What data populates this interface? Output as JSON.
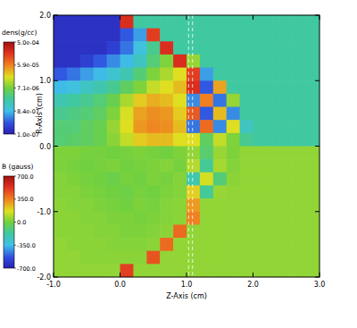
{
  "chart_data": {
    "type": "heatmap",
    "xlabel": "Z-Axis (cm)",
    "ylabel": "R-Axis (cm)",
    "xlim": [
      -1,
      3
    ],
    "ylim": [
      -2,
      2
    ],
    "xticks": [
      {
        "value": -1,
        "label": "-1.0"
      },
      {
        "value": 0,
        "label": "0.0"
      },
      {
        "value": 1,
        "label": "1.0"
      },
      {
        "value": 2,
        "label": "2.0"
      },
      {
        "value": 3,
        "label": "3.0"
      }
    ],
    "yticks": [
      {
        "value": -2,
        "label": "-2.0"
      },
      {
        "value": -1,
        "label": "-1.0"
      },
      {
        "value": 0,
        "label": "0.0"
      },
      {
        "value": 1,
        "label": "1.0"
      },
      {
        "value": 2,
        "label": "2.0"
      }
    ],
    "vlines": [
      1.03,
      1.09
    ],
    "fields": [
      {
        "label": "dens(g/cc)",
        "log": true,
        "range": [
          1e-07,
          0.0005
        ],
        "ticks": [
          {
            "value": 0.0005,
            "label": "5.0e-04"
          },
          {
            "value": 5.9e-05,
            "label": "5.9e-05"
          },
          {
            "value": 7.1e-06,
            "label": "7.1e-06"
          },
          {
            "value": 8.4e-07,
            "label": "8.4e-07"
          },
          {
            "value": 1e-07,
            "label": "1.0e-07"
          }
        ],
        "ylim": [
          0,
          2
        ],
        "cells": [
          [
            1.5e-07,
            1.5e-07,
            1.5e-07,
            1.5e-07,
            1.5e-07,
            0.0002,
            2.5e-06,
            2.5e-06,
            2.5e-06,
            2.5e-06,
            2.5e-06,
            2.5e-06,
            2.5e-06,
            2.5e-06,
            2.5e-06,
            2.5e-06,
            2.5e-06,
            2.5e-06,
            2.5e-06,
            2.5e-06
          ],
          [
            1.5e-07,
            1.5e-07,
            1.5e-07,
            1.5e-07,
            1.5e-07,
            3e-07,
            6e-07,
            0.00015,
            2.5e-06,
            2.5e-06,
            2.5e-06,
            2.5e-06,
            2.5e-06,
            2.5e-06,
            2.5e-06,
            2.5e-06,
            2.5e-06,
            2.5e-06,
            2.5e-06,
            2.5e-06
          ],
          [
            1.5e-07,
            1.5e-07,
            1.5e-07,
            1.5e-07,
            2e-07,
            4e-07,
            1e-06,
            3e-06,
            0.0002,
            2.5e-06,
            2.5e-06,
            2.5e-06,
            2.5e-06,
            2.5e-06,
            2.5e-06,
            2.5e-06,
            2.5e-06,
            2.5e-06,
            2.5e-06,
            2.5e-06
          ],
          [
            1.5e-07,
            1.5e-07,
            2e-07,
            3e-07,
            5e-07,
            8e-07,
            1.5e-06,
            4e-06,
            8e-06,
            0.0002,
            1e-05,
            2.5e-06,
            2.5e-06,
            2.5e-06,
            2.5e-06,
            2.5e-06,
            2.5e-06,
            2.5e-06,
            2.5e-06,
            2.5e-06
          ],
          [
            3e-07,
            4e-07,
            6e-07,
            8e-07,
            1.2e-06,
            2e-06,
            4e-06,
            8e-06,
            1.2e-05,
            2e-05,
            0.00015,
            6e-07,
            2.5e-06,
            2.5e-06,
            2.5e-06,
            2.5e-06,
            2.5e-06,
            2.5e-06,
            2.5e-06,
            2.5e-06
          ],
          [
            8e-07,
            1e-06,
            1.5e-06,
            2e-06,
            3e-06,
            5e-06,
            8e-06,
            1.5e-05,
            2e-05,
            3e-05,
            0.0002,
            3e-07,
            4e-05,
            2.5e-06,
            2.5e-06,
            2.5e-06,
            2.5e-06,
            2.5e-06,
            2.5e-06,
            2.5e-06
          ],
          [
            2e-06,
            2.5e-06,
            3e-06,
            4e-06,
            6e-06,
            1.2e-05,
            2.5e-05,
            3.5e-05,
            3e-05,
            2e-05,
            5e-07,
            6e-05,
            4e-07,
            1e-05,
            2.5e-06,
            2.5e-06,
            2.5e-06,
            2.5e-06,
            2.5e-06,
            2.5e-06
          ],
          [
            3e-06,
            3.5e-06,
            4e-06,
            5e-06,
            8e-06,
            1.8e-05,
            4e-05,
            5e-05,
            4.5e-05,
            2.5e-05,
            0.0001,
            3e-07,
            3e-05,
            5e-07,
            2.5e-06,
            2.5e-06,
            2.5e-06,
            2.5e-06,
            2.5e-06,
            2.5e-06
          ],
          [
            4e-06,
            4e-06,
            5e-06,
            6e-06,
            1e-05,
            2e-05,
            4.5e-05,
            5.5e-05,
            5e-05,
            3e-05,
            4e-07,
            8e-05,
            5e-07,
            2e-05,
            1.5e-06,
            2.5e-06,
            2.5e-06,
            2.5e-06,
            2.5e-06,
            2.5e-06
          ],
          [
            4e-06,
            4.5e-06,
            5e-06,
            6e-06,
            9e-06,
            1.5e-05,
            2.5e-05,
            3e-05,
            3e-05,
            2e-05,
            2e-05,
            5e-06,
            1.5e-05,
            8e-06,
            3e-06,
            2.5e-06,
            2.5e-06,
            2.5e-06,
            2.5e-06,
            2.5e-06
          ]
        ]
      },
      {
        "label": "B (gauss)",
        "range": [
          -700,
          700
        ],
        "ticks": [
          {
            "value": 700,
            "label": "700.0"
          },
          {
            "value": 350,
            "label": "350.0"
          },
          {
            "value": 0,
            "label": "0.0"
          },
          {
            "value": -350,
            "label": "-350.0"
          },
          {
            "value": -700,
            "label": "-700.0"
          }
        ],
        "ylim": [
          -2,
          0
        ],
        "cells": [
          [
            20,
            20,
            10,
            10,
            0,
            10,
            20,
            10,
            0,
            20,
            50,
            -80,
            60,
            20,
            50,
            50,
            50,
            50,
            50,
            50
          ],
          [
            20,
            10,
            0,
            10,
            20,
            0,
            10,
            20,
            30,
            10,
            100,
            -150,
            80,
            30,
            50,
            50,
            50,
            50,
            50,
            50
          ],
          [
            30,
            20,
            10,
            0,
            -20,
            10,
            0,
            20,
            10,
            30,
            -200,
            150,
            -100,
            40,
            50,
            50,
            50,
            50,
            50,
            50
          ],
          [
            30,
            30,
            20,
            10,
            0,
            -10,
            10,
            0,
            20,
            30,
            200,
            -150,
            60,
            50,
            50,
            50,
            50,
            50,
            50,
            50
          ],
          [
            40,
            30,
            30,
            20,
            10,
            0,
            20,
            10,
            30,
            40,
            300,
            50,
            50,
            50,
            50,
            50,
            50,
            50,
            50,
            50
          ],
          [
            40,
            40,
            30,
            30,
            20,
            20,
            10,
            20,
            30,
            40,
            350,
            50,
            50,
            50,
            50,
            50,
            50,
            50,
            50,
            50
          ],
          [
            40,
            40,
            40,
            30,
            30,
            20,
            20,
            30,
            40,
            400,
            50,
            50,
            50,
            50,
            50,
            50,
            50,
            50,
            50,
            50
          ],
          [
            50,
            40,
            40,
            40,
            30,
            30,
            30,
            40,
            400,
            50,
            50,
            50,
            50,
            50,
            50,
            50,
            50,
            50,
            50,
            50
          ],
          [
            50,
            50,
            40,
            40,
            40,
            40,
            40,
            450,
            50,
            50,
            50,
            50,
            50,
            50,
            50,
            50,
            50,
            50,
            50,
            50
          ],
          [
            50,
            50,
            50,
            50,
            50,
            500,
            50,
            50,
            50,
            50,
            50,
            50,
            50,
            50,
            50,
            50,
            50,
            50,
            50,
            50
          ]
        ]
      }
    ]
  }
}
